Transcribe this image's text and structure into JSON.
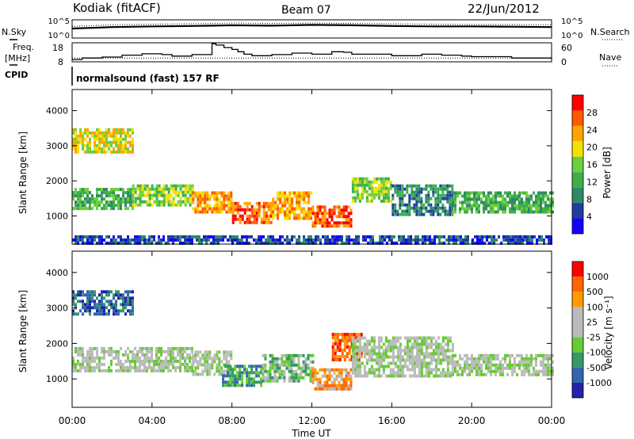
{
  "header": {
    "station": "Kodiak (fitACF)",
    "beam": "Beam 07",
    "date": "22/Jun/2012"
  },
  "left_labels": {
    "nsky": "N.Sky",
    "freq": "Freq.",
    "freq_unit": "[MHz]",
    "cpid": "CPID"
  },
  "right_labels": {
    "nsearch": "N.Search",
    "nave": "Nave"
  },
  "cpid_text": "normalsound (fast) 157 RF",
  "colors": {
    "power": [
      "#1400ff",
      "#1f3d9e",
      "#2e8a66",
      "#3caf4c",
      "#6ccf3e",
      "#f5e100",
      "#ffa500",
      "#ff5a00",
      "#ff0000"
    ],
    "velocity": [
      "#ff0000",
      "#ff6600",
      "#ff9900",
      "#bbbbbb",
      "#bbbbbb",
      "#66cc33",
      "#339966",
      "#3366aa",
      "#2222aa"
    ]
  },
  "chart_data": [
    {
      "type": "line",
      "name": "noise",
      "ylabel_left": "N.Sky",
      "ylabel_right": "N.Search",
      "y_ticks": [
        "10^5",
        "10^0"
      ],
      "y_ticks_right": [
        "10^5",
        "10^0"
      ],
      "x": [
        0,
        2,
        4,
        6,
        8,
        10,
        12,
        14,
        16,
        18,
        20,
        22,
        24
      ],
      "series": [
        {
          "name": "N.Sky",
          "values": [
            2.6,
            3.0,
            3.2,
            3.3,
            3.5,
            3.4,
            3.6,
            3.5,
            3.3,
            3.2,
            3.2,
            3.1,
            3.0
          ]
        },
        {
          "name": "N.Search",
          "values": [
            3.2,
            3.6,
            3.8,
            3.9,
            4.1,
            4.0,
            4.1,
            4.0,
            3.9,
            3.8,
            3.7,
            3.7,
            3.6
          ]
        }
      ]
    },
    {
      "type": "line",
      "name": "frequency",
      "ylabel_left": "Freq. [MHz]",
      "ylabel_right": "Nave",
      "y_ticks": [
        "18",
        "8"
      ],
      "y_ticks_right": [
        "60",
        "0"
      ],
      "series": [
        {
          "name": "Freq",
          "x": [
            0,
            0.5,
            1.0,
            1.5,
            2.0,
            2.5,
            3.0,
            3.5,
            4.0,
            4.5,
            5.0,
            5.5,
            6.0,
            6.5,
            7.0,
            7.2,
            7.6,
            8.0,
            8.3,
            8.6,
            9.0,
            9.5,
            10.0,
            10.5,
            11.0,
            11.5,
            12.0,
            12.5,
            13.0,
            13.3,
            13.6,
            14.0,
            15.0,
            16.0,
            17.0,
            17.5,
            18.0,
            18.5,
            19.0,
            19.5,
            20.0,
            21.0,
            22.0,
            23.0,
            24.0
          ],
          "values": [
            9.2,
            10.0,
            10.0,
            10.5,
            10.5,
            11.5,
            11.5,
            12.2,
            12.2,
            11.8,
            11.0,
            11.0,
            11.8,
            11.8,
            17.5,
            16.8,
            15.5,
            14.5,
            13.3,
            12.0,
            11.2,
            11.2,
            11.8,
            11.8,
            12.6,
            12.6,
            12.0,
            12.0,
            13.3,
            13.3,
            13.0,
            12.0,
            12.0,
            11.2,
            11.2,
            12.0,
            12.0,
            11.5,
            11.5,
            11.0,
            10.7,
            10.7,
            10.0,
            10.0,
            9.5
          ]
        },
        {
          "name": "Nave",
          "x": [
            0,
            24
          ],
          "values": [
            12,
            12
          ]
        }
      ]
    },
    {
      "type": "heatmap",
      "name": "power",
      "ylabel": "Slant Range [km]",
      "y_ticks": [
        1000,
        2000,
        3000,
        4000
      ],
      "ylim": [
        200,
        4600
      ],
      "colorbar_label": "Power [dB]",
      "colorbar_ticks": [
        "28",
        "24",
        "20",
        "16",
        "12",
        "8",
        "4"
      ],
      "bands": [
        {
          "t": [
            0,
            3
          ],
          "r": [
            1200,
            1800
          ],
          "level": 3
        },
        {
          "t": [
            3,
            6
          ],
          "r": [
            1300,
            1900
          ],
          "level": 4
        },
        {
          "t": [
            6,
            8
          ],
          "r": [
            1100,
            1700
          ],
          "level": 6
        },
        {
          "t": [
            8,
            10
          ],
          "r": [
            800,
            1400
          ],
          "level": 7
        },
        {
          "t": [
            10,
            12
          ],
          "r": [
            900,
            1700
          ],
          "level": 6
        },
        {
          "t": [
            12,
            14
          ],
          "r": [
            700,
            1300
          ],
          "level": 7
        },
        {
          "t": [
            14,
            16
          ],
          "r": [
            1400,
            2100
          ],
          "level": 4
        },
        {
          "t": [
            16,
            19
          ],
          "r": [
            1000,
            1900
          ],
          "level": 2
        },
        {
          "t": [
            19,
            24
          ],
          "r": [
            1100,
            1700
          ],
          "level": 3
        },
        {
          "t": [
            0,
            24
          ],
          "r": [
            250,
            450
          ],
          "level": 1
        },
        {
          "t": [
            0,
            3
          ],
          "r": [
            2800,
            3500
          ],
          "level": 5
        }
      ]
    },
    {
      "type": "heatmap",
      "name": "velocity",
      "ylabel": "Slant Range [km]",
      "y_ticks": [
        1000,
        2000,
        3000,
        4000
      ],
      "ylim": [
        200,
        4600
      ],
      "colorbar_label": "Velocity [m s⁻¹]",
      "colorbar_ticks": [
        "1000",
        "500",
        "100",
        "25",
        "-25",
        "-100",
        "-500",
        "-1000"
      ],
      "bands": [
        {
          "t": [
            0,
            6
          ],
          "r": [
            1200,
            1900
          ],
          "level": 4
        },
        {
          "t": [
            6,
            8
          ],
          "r": [
            1100,
            1800
          ],
          "level": 4
        },
        {
          "t": [
            7.5,
            9.5
          ],
          "r": [
            800,
            1400
          ],
          "level": 6
        },
        {
          "t": [
            9.5,
            12
          ],
          "r": [
            900,
            1700
          ],
          "level": 5
        },
        {
          "t": [
            12,
            14
          ],
          "r": [
            700,
            1300
          ],
          "level": 2
        },
        {
          "t": [
            13,
            14.5
          ],
          "r": [
            1500,
            2300
          ],
          "level": 1
        },
        {
          "t": [
            14,
            19
          ],
          "r": [
            1100,
            2200
          ],
          "level": 4
        },
        {
          "t": [
            19,
            24
          ],
          "r": [
            1100,
            1700
          ],
          "level": 4
        },
        {
          "t": [
            0,
            3
          ],
          "r": [
            2800,
            3500
          ],
          "level": 7
        }
      ]
    }
  ],
  "x_axis": {
    "label": "Time UT",
    "ticks": [
      "00:00",
      "04:00",
      "08:00",
      "12:00",
      "16:00",
      "20:00",
      "00:00"
    ]
  }
}
